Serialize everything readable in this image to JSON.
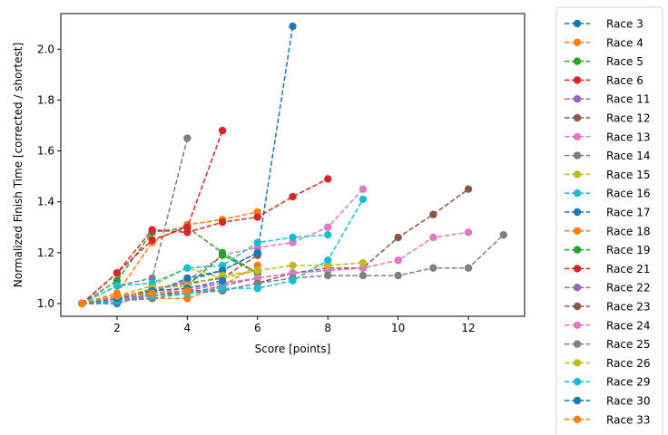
{
  "chart_data": {
    "type": "line",
    "title": "",
    "xlabel": "Score [points]",
    "ylabel": "Normalized Finish Time [corrected / shortest]",
    "xlim": [
      0.4,
      13.6
    ],
    "ylim": [
      0.95,
      2.14
    ],
    "xticks": [
      2,
      4,
      6,
      8,
      10,
      12
    ],
    "yticks": [
      1.0,
      1.2,
      1.4,
      1.6,
      1.8,
      2.0
    ],
    "ytick_labels": [
      "1.0",
      "1.2",
      "1.4",
      "1.6",
      "1.8",
      "2.0"
    ],
    "grid": false,
    "legend_position": "outside-right",
    "line_style": "dashed",
    "marker": "circle",
    "series": [
      {
        "name": "Race 3",
        "color": "#1f77b4",
        "x": [
          1,
          2,
          3,
          4,
          5,
          6,
          7
        ],
        "y": [
          1.0,
          1.01,
          1.05,
          1.09,
          1.13,
          1.2,
          2.09
        ]
      },
      {
        "name": "Race 4",
        "color": "#ff7f0e",
        "x": [
          1,
          2,
          3,
          4,
          5,
          6
        ],
        "y": [
          1.0,
          1.04,
          1.24,
          1.31,
          1.33,
          1.36
        ]
      },
      {
        "name": "Race 5",
        "color": "#2ca02c",
        "x": [
          1,
          2,
          3,
          4,
          5,
          6
        ],
        "y": [
          1.0,
          1.09,
          1.28,
          1.3,
          1.2,
          1.12
        ]
      },
      {
        "name": "Race 6",
        "color": "#d62728",
        "x": [
          1,
          2,
          3,
          4,
          5
        ],
        "y": [
          1.0,
          1.12,
          1.25,
          1.3,
          1.68
        ]
      },
      {
        "name": "Race 11",
        "color": "#9467bd",
        "x": [
          1,
          2,
          3,
          4,
          5,
          6
        ],
        "y": [
          1.0,
          1.02,
          1.03,
          1.05,
          1.08,
          1.1
        ]
      },
      {
        "name": "Race 12",
        "color": "#8c564b",
        "x": [
          1,
          2,
          3,
          4,
          5,
          6
        ],
        "y": [
          1.0,
          1.01,
          1.06,
          1.08,
          1.1,
          1.19
        ]
      },
      {
        "name": "Race 13",
        "color": "#e377c2",
        "x": [
          1,
          2,
          3,
          4,
          5,
          6,
          7,
          8,
          9
        ],
        "y": [
          1.0,
          1.03,
          1.05,
          1.09,
          1.19,
          1.22,
          1.24,
          1.3,
          1.45
        ]
      },
      {
        "name": "Race 14",
        "color": "#7f7f7f",
        "x": [
          1,
          2,
          3,
          4
        ],
        "y": [
          1.0,
          1.07,
          1.1,
          1.65
        ]
      },
      {
        "name": "Race 15",
        "color": "#bcbd22",
        "x": [
          1,
          2,
          3,
          4,
          5,
          6
        ],
        "y": [
          1.0,
          1.03,
          1.07,
          1.14,
          1.1,
          1.13
        ]
      },
      {
        "name": "Race 16",
        "color": "#17becf",
        "x": [
          1,
          2,
          3,
          4,
          5,
          6,
          7,
          8
        ],
        "y": [
          1.0,
          1.07,
          1.08,
          1.14,
          1.15,
          1.24,
          1.26,
          1.27
        ]
      },
      {
        "name": "Race 17",
        "color": "#1f77b4",
        "x": [
          1,
          2,
          3,
          4,
          5,
          6
        ],
        "y": [
          1.0,
          1.0,
          1.04,
          1.1,
          1.13,
          1.2
        ]
      },
      {
        "name": "Race 18",
        "color": "#ff7f0e",
        "x": [
          1,
          2,
          3,
          4,
          5,
          6
        ],
        "y": [
          1.0,
          1.02,
          1.02,
          1.02,
          1.07,
          1.15
        ]
      },
      {
        "name": "Race 19",
        "color": "#2ca02c",
        "x": [
          1,
          2,
          3,
          4,
          5,
          6
        ],
        "y": [
          1.0,
          1.01,
          1.06,
          1.07,
          1.19,
          1.12
        ]
      },
      {
        "name": "Race 21",
        "color": "#d62728",
        "x": [
          1,
          2,
          3,
          4,
          5,
          6,
          7,
          8
        ],
        "y": [
          1.0,
          1.12,
          1.29,
          1.28,
          1.32,
          1.34,
          1.42,
          1.49
        ]
      },
      {
        "name": "Race 22",
        "color": "#9467bd",
        "x": [
          1,
          2,
          3,
          4,
          5,
          6,
          7,
          8,
          9
        ],
        "y": [
          1.0,
          1.02,
          1.03,
          1.04,
          1.07,
          1.1,
          1.12,
          1.13,
          1.14
        ]
      },
      {
        "name": "Race 23",
        "color": "#8c564b",
        "x": [
          1,
          2,
          3,
          4,
          5,
          6,
          7,
          8,
          9,
          10,
          11,
          12
        ],
        "y": [
          1.0,
          1.01,
          1.03,
          1.05,
          1.05,
          1.08,
          1.12,
          1.14,
          1.14,
          1.26,
          1.35,
          1.45
        ]
      },
      {
        "name": "Race 24",
        "color": "#e377c2",
        "x": [
          1,
          2,
          3,
          4,
          5,
          6,
          7,
          8,
          9,
          10,
          11,
          12
        ],
        "y": [
          1.0,
          1.02,
          1.04,
          1.06,
          1.08,
          1.1,
          1.12,
          1.13,
          1.14,
          1.17,
          1.26,
          1.28
        ]
      },
      {
        "name": "Race 25",
        "color": "#7f7f7f",
        "x": [
          1,
          2,
          3,
          4,
          5,
          6,
          7,
          8,
          9,
          10,
          11,
          12,
          13
        ],
        "y": [
          1.0,
          1.01,
          1.02,
          1.04,
          1.05,
          1.08,
          1.1,
          1.11,
          1.11,
          1.11,
          1.14,
          1.14,
          1.27
        ]
      },
      {
        "name": "Race 26",
        "color": "#bcbd22",
        "x": [
          1,
          2,
          3,
          4,
          5,
          6,
          7,
          8,
          9
        ],
        "y": [
          1.0,
          1.02,
          1.06,
          1.07,
          1.11,
          1.13,
          1.15,
          1.15,
          1.16
        ]
      },
      {
        "name": "Race 29",
        "color": "#17becf",
        "x": [
          1,
          2,
          3,
          4,
          5,
          6,
          7,
          8,
          9
        ],
        "y": [
          1.0,
          1.01,
          1.03,
          1.04,
          1.06,
          1.06,
          1.09,
          1.17,
          1.41
        ]
      },
      {
        "name": "Race 30",
        "color": "#1f77b4",
        "x": [
          1,
          2,
          3,
          4,
          5
        ],
        "y": [
          1.0,
          1.02,
          1.05,
          1.06,
          1.09
        ]
      },
      {
        "name": "Race 33",
        "color": "#ff7f0e",
        "x": [
          1,
          2,
          3,
          4
        ],
        "y": [
          1.0,
          1.03,
          1.04,
          1.05
        ]
      }
    ]
  }
}
